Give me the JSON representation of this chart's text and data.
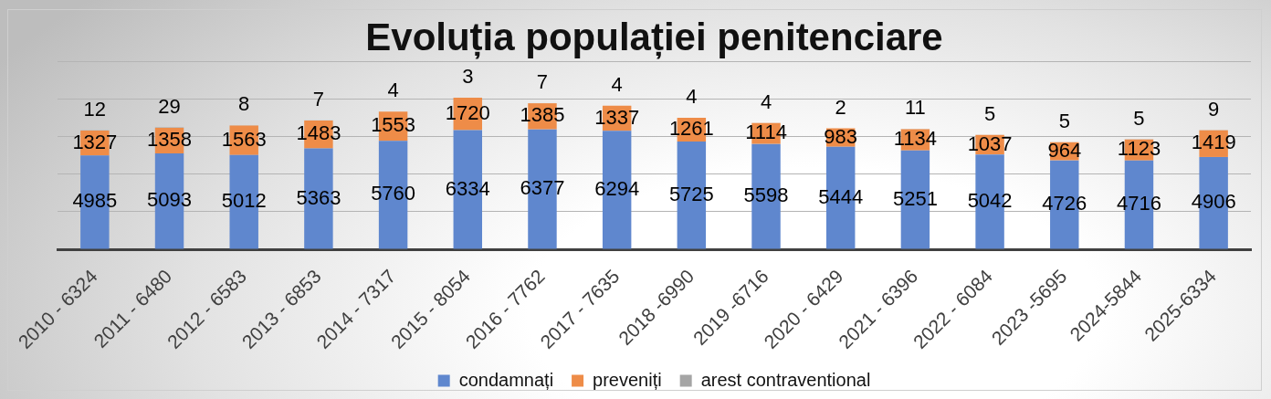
{
  "chart_data": {
    "type": "bar",
    "title": "Evoluția populației penitenciare",
    "categories": [
      "2010 - 6324",
      "2011 - 6480",
      "2012 - 6583",
      "2013 - 6853",
      "2014 - 7317",
      "2015 - 8054",
      "2016 - 7762",
      "2017 - 7635",
      "2018 -6990",
      "2019 -6716",
      "2020 - 6429",
      "2021 - 6396",
      "2022 - 6084",
      "2023 -5695",
      "2024-5844",
      "2025-6334"
    ],
    "series": [
      {
        "name": "condamnați",
        "color": "#5f87ce",
        "values": [
          4985,
          5093,
          5012,
          5363,
          5760,
          6334,
          6377,
          6294,
          5725,
          5598,
          5444,
          5251,
          5042,
          4726,
          4716,
          4906
        ]
      },
      {
        "name": "preveniți",
        "color": "#ee8c48",
        "values": [
          1327,
          1358,
          1563,
          1483,
          1553,
          1720,
          1385,
          1337,
          1261,
          1114,
          983,
          1134,
          1037,
          964,
          1123,
          1419
        ]
      },
      {
        "name": "arest contraventional",
        "color": "#a5a5a5",
        "values": [
          12,
          29,
          8,
          7,
          4,
          3,
          7,
          4,
          4,
          4,
          2,
          11,
          5,
          5,
          5,
          9
        ]
      }
    ],
    "stacked": true,
    "ylim": [
      0,
      10000
    ],
    "yticks": [
      {
        "value": 0,
        "label": null
      },
      {
        "value": 2000,
        "label": null
      },
      {
        "value": 4000,
        "label": null
      },
      {
        "value": 6000,
        "label": null
      },
      {
        "value": 8000,
        "label": null
      },
      {
        "value": 10000,
        "label": null
      }
    ],
    "grid": "y",
    "legend": "bottom",
    "tick_labels": "x",
    "data_labels": true
  }
}
